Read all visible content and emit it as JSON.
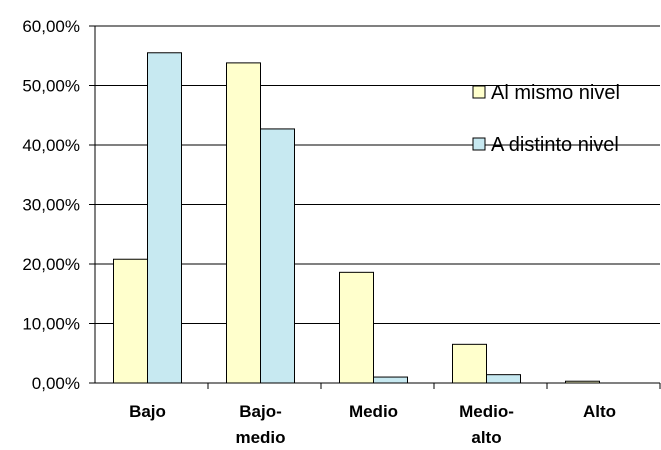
{
  "chart_data": {
    "type": "bar",
    "categories": [
      [
        "Bajo"
      ],
      [
        "Bajo-",
        "medio"
      ],
      [
        "Medio"
      ],
      [
        "Medio-",
        "alto"
      ],
      [
        "Alto"
      ]
    ],
    "series": [
      {
        "name": "Al mismo nivel",
        "color": "#FFFFCC",
        "values": [
          20.8,
          53.8,
          18.6,
          6.5,
          0.3
        ]
      },
      {
        "name": "A distinto nivel",
        "color": "#C7E9F1",
        "values": [
          55.5,
          42.7,
          1.0,
          1.4,
          0.0
        ]
      }
    ],
    "ylim": [
      0,
      60
    ],
    "yticks": [
      "0,00%",
      "10,00%",
      "20,00%",
      "30,00%",
      "40,00%",
      "50,00%",
      "60,00%"
    ],
    "grid": true,
    "legend_position": "right"
  }
}
